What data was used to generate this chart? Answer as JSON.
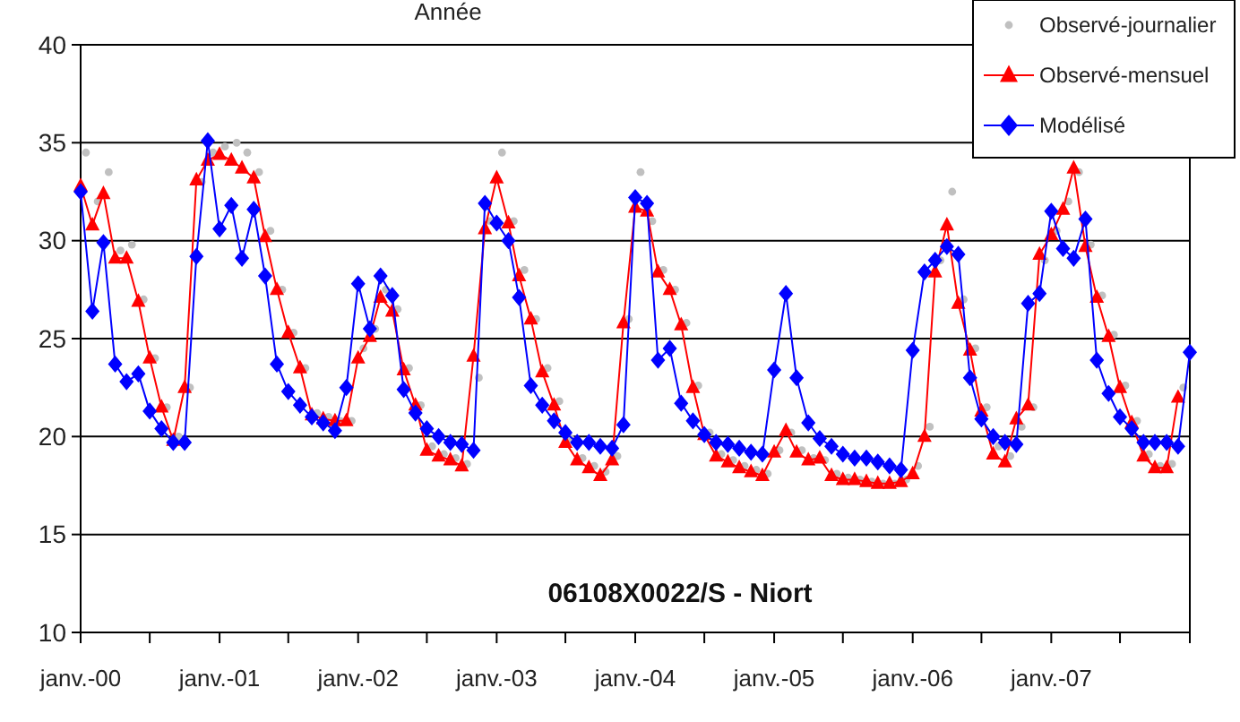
{
  "chart_data": {
    "type": "line",
    "title": "Année",
    "annotations": [
      "06108X0022/S - Niort"
    ],
    "x": [
      "2000-01",
      "2000-02",
      "2000-03",
      "2000-04",
      "2000-05",
      "2000-06",
      "2000-07",
      "2000-08",
      "2000-09",
      "2000-10",
      "2000-11",
      "2000-12",
      "2001-01",
      "2001-02",
      "2001-03",
      "2001-04",
      "2001-05",
      "2001-06",
      "2001-07",
      "2001-08",
      "2001-09",
      "2001-10",
      "2001-11",
      "2001-12",
      "2002-01",
      "2002-02",
      "2002-03",
      "2002-04",
      "2002-05",
      "2002-06",
      "2002-07",
      "2002-08",
      "2002-09",
      "2002-10",
      "2002-11",
      "2002-12",
      "2003-01",
      "2003-02",
      "2003-03",
      "2003-04",
      "2003-05",
      "2003-06",
      "2003-07",
      "2003-08",
      "2003-09",
      "2003-10",
      "2003-11",
      "2003-12",
      "2004-01",
      "2004-02",
      "2004-03",
      "2004-04",
      "2004-05",
      "2004-06",
      "2004-07",
      "2004-08",
      "2004-09",
      "2004-10",
      "2004-11",
      "2004-12",
      "2005-01",
      "2005-02",
      "2005-03",
      "2005-04",
      "2005-05",
      "2005-06",
      "2005-07",
      "2005-08",
      "2005-09",
      "2005-10",
      "2005-11",
      "2005-12",
      "2006-01",
      "2006-02",
      "2006-03",
      "2006-04",
      "2006-05",
      "2006-06",
      "2006-07",
      "2006-08",
      "2006-09",
      "2006-10",
      "2006-11",
      "2006-12",
      "2007-01",
      "2007-02",
      "2007-03",
      "2007-04",
      "2007-05",
      "2007-06",
      "2007-07",
      "2007-08",
      "2007-09",
      "2007-10",
      "2007-11",
      "2007-12",
      "2008-01"
    ],
    "series": [
      {
        "name": "Observé-journalier",
        "type": "scatter",
        "marker": "circle",
        "color": "#c0c0c0",
        "x": [
          "2000-01-15",
          "2000-02-15",
          "2000-03-15",
          "2000-04-15",
          "2000-05-15",
          "2000-06-15",
          "2000-07-15",
          "2000-08-15",
          "2000-09-15",
          "2000-10-15",
          "2000-11-15",
          "2000-12-15",
          "2001-01-15",
          "2001-02-15",
          "2001-03-15",
          "2001-04-15",
          "2001-05-15",
          "2001-06-15",
          "2001-07-15",
          "2001-08-15",
          "2001-09-15",
          "2001-10-15",
          "2001-11-15",
          "2001-12-15",
          "2002-01-15",
          "2002-02-15",
          "2002-03-15",
          "2002-04-15",
          "2002-05-15",
          "2002-06-15",
          "2002-07-15",
          "2002-08-15",
          "2002-09-15",
          "2002-10-15",
          "2002-11-15",
          "2002-12-15",
          "2003-01-15",
          "2003-02-15",
          "2003-03-15",
          "2003-04-15",
          "2003-05-15",
          "2003-06-15",
          "2003-07-15",
          "2003-08-15",
          "2003-09-15",
          "2003-10-15",
          "2003-11-15",
          "2003-12-15",
          "2004-01-15",
          "2004-02-15",
          "2004-03-15",
          "2004-04-15",
          "2004-05-15",
          "2004-06-15",
          "2004-07-15",
          "2004-08-15",
          "2004-09-15",
          "2004-10-15",
          "2004-11-15",
          "2004-12-15",
          "2005-01-15",
          "2005-02-15",
          "2005-03-15",
          "2005-04-15",
          "2005-05-15",
          "2005-06-15",
          "2005-07-15",
          "2005-08-15",
          "2005-09-15",
          "2005-10-15",
          "2005-11-15",
          "2005-12-15",
          "2006-01-15",
          "2006-02-15",
          "2006-03-15",
          "2006-04-15",
          "2006-05-15",
          "2006-06-15",
          "2006-07-15",
          "2006-08-15",
          "2006-09-15",
          "2006-10-15",
          "2006-11-15",
          "2006-12-15",
          "2007-01-15",
          "2007-02-15",
          "2007-03-15",
          "2007-04-15",
          "2007-05-15",
          "2007-06-15",
          "2007-07-15",
          "2007-08-15",
          "2007-09-15",
          "2007-10-15",
          "2007-11-15",
          "2007-12-15"
        ],
        "values": [
          34.5,
          32,
          33.5,
          29.5,
          29.8,
          27,
          24,
          21.5,
          20,
          22.5,
          33,
          34.5,
          34.8,
          35,
          34.5,
          33.5,
          30.5,
          27.5,
          25.3,
          23.5,
          21.2,
          21,
          20.8,
          20.8,
          24.5,
          25.5,
          27.5,
          26.5,
          23.5,
          21.6,
          19.5,
          19.1,
          18.9,
          18.6,
          23,
          31,
          34.5,
          31,
          28.5,
          26,
          23.5,
          21.8,
          19.9,
          18.9,
          18.5,
          18.2,
          19,
          26,
          33.5,
          31,
          28.5,
          27.5,
          25.8,
          22.6,
          20.2,
          19.1,
          18.8,
          18.5,
          18.3,
          18.1,
          19.3,
          20.2,
          19.3,
          18.9,
          18.8,
          18.1,
          17.9,
          17.8,
          17.7,
          17.6,
          17.6,
          17.8,
          18.5,
          20.5,
          29,
          32.5,
          27,
          24.5,
          21.5,
          19.5,
          19,
          20.5,
          21.5,
          29,
          30.5,
          32,
          33.5,
          29.8,
          27.2,
          25.2,
          22.6,
          20.8,
          19.1,
          18.5,
          18.6,
          22.5
        ]
      },
      {
        "name": "Observé-mensuel",
        "marker": "triangle",
        "color": "#ff0000",
        "values": [
          32.8,
          30.8,
          32.4,
          29.1,
          29.1,
          26.9,
          24.0,
          21.5,
          19.8,
          22.5,
          33.1,
          34.1,
          34.4,
          34.1,
          33.7,
          33.2,
          30.2,
          27.5,
          25.3,
          23.5,
          21.1,
          20.9,
          20.8,
          20.8,
          24.0,
          25.1,
          27.1,
          26.4,
          23.4,
          21.6,
          19.3,
          19.0,
          18.8,
          18.5,
          24.1,
          30.6,
          33.2,
          30.9,
          28.2,
          26.0,
          23.3,
          21.6,
          19.7,
          18.8,
          18.4,
          18.0,
          18.8,
          25.8,
          31.7,
          31.5,
          28.4,
          27.5,
          25.7,
          22.5,
          20.1,
          19.0,
          18.7,
          18.4,
          18.2,
          18.0,
          19.2,
          20.3,
          19.2,
          18.8,
          18.9,
          18.0,
          17.8,
          17.8,
          17.7,
          17.6,
          17.6,
          17.7,
          18.1,
          20.0,
          28.4,
          30.8,
          26.8,
          24.4,
          21.3,
          19.1,
          18.7,
          20.9,
          21.6,
          29.3,
          30.3,
          31.6,
          33.7,
          29.7,
          27.1,
          25.1,
          22.5,
          20.7,
          19.0,
          18.4,
          18.4,
          22.0,
          null
        ]
      },
      {
        "name": "Modélisé",
        "marker": "diamond",
        "color": "#0000ff",
        "values": [
          32.5,
          26.4,
          29.9,
          23.7,
          22.8,
          23.2,
          21.3,
          20.4,
          19.7,
          19.7,
          29.2,
          35.1,
          30.6,
          31.8,
          29.1,
          31.6,
          28.2,
          23.7,
          22.3,
          21.6,
          21.0,
          20.7,
          20.3,
          22.5,
          27.8,
          25.5,
          28.2,
          27.2,
          22.4,
          21.2,
          20.4,
          20.0,
          19.7,
          19.6,
          19.3,
          31.9,
          30.9,
          30.0,
          27.1,
          22.6,
          21.6,
          20.8,
          20.2,
          19.7,
          19.7,
          19.5,
          19.4,
          20.6,
          32.2,
          31.9,
          23.9,
          24.5,
          21.7,
          20.8,
          20.1,
          19.7,
          19.6,
          19.4,
          19.2,
          19.1,
          23.4,
          27.3,
          23.0,
          20.7,
          19.9,
          19.5,
          19.1,
          18.9,
          18.9,
          18.7,
          18.5,
          18.3,
          24.4,
          28.4,
          29.0,
          29.7,
          29.3,
          23.0,
          20.9,
          20.0,
          19.7,
          19.6,
          26.8,
          27.3,
          31.5,
          29.6,
          29.1,
          31.1,
          23.9,
          22.2,
          21.0,
          20.4,
          19.7,
          19.7,
          19.7,
          19.5,
          24.3
        ]
      }
    ],
    "xlim": [
      "2000-01",
      "2008-01"
    ],
    "xticks": [
      {
        "value": "2000-01",
        "label": "janv.-00"
      },
      {
        "value": "2000-07",
        "label": null
      },
      {
        "value": "2001-01",
        "label": "janv.-01"
      },
      {
        "value": "2001-07",
        "label": null
      },
      {
        "value": "2002-01",
        "label": "janv.-02"
      },
      {
        "value": "2002-07",
        "label": null
      },
      {
        "value": "2003-01",
        "label": "janv.-03"
      },
      {
        "value": "2003-07",
        "label": null
      },
      {
        "value": "2004-01",
        "label": "janv.-04"
      },
      {
        "value": "2004-07",
        "label": null
      },
      {
        "value": "2005-01",
        "label": "janv.-05"
      },
      {
        "value": "2005-07",
        "label": null
      },
      {
        "value": "2006-01",
        "label": "janv.-06"
      },
      {
        "value": "2006-07",
        "label": null
      },
      {
        "value": "2007-01",
        "label": "janv.-07"
      },
      {
        "value": "2007-07",
        "label": null
      },
      {
        "value": "2008-01",
        "label": null
      }
    ],
    "ylim": [
      10,
      40
    ],
    "yticks": [
      10,
      15,
      20,
      25,
      30,
      35,
      40
    ],
    "grid": "y",
    "legend": "top right"
  }
}
